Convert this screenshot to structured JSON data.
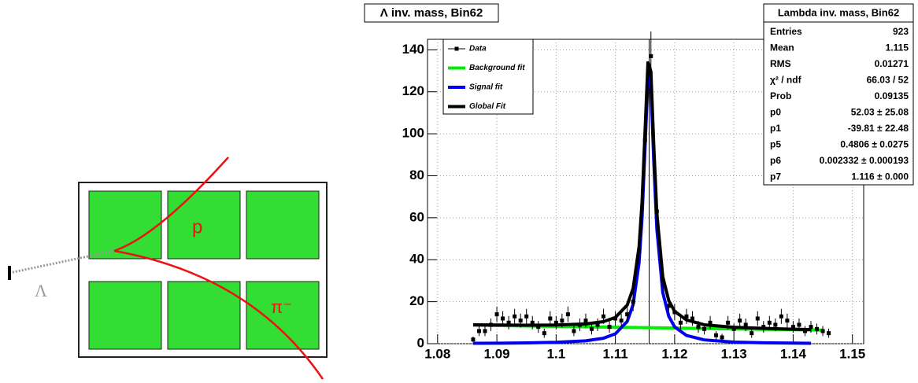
{
  "chart_data": {
    "type": "scatter",
    "title": "Λ inv. mass, Bin62",
    "xlim": [
      1.0783,
      1.1519
    ],
    "ylim": [
      0,
      145
    ],
    "xticks": [
      1.08,
      1.09,
      1.1,
      1.11,
      1.12,
      1.13,
      1.14,
      1.15
    ],
    "yticks": [
      0,
      20,
      40,
      60,
      80,
      100,
      120,
      140
    ],
    "grid": true,
    "legend_position": "top-left",
    "marker_line": {
      "x": 1.1157,
      "color": "#000000"
    },
    "series": [
      {
        "name": "Data",
        "color": "#000000",
        "mode": "points",
        "x": [
          1.086,
          1.087,
          1.088,
          1.089,
          1.09,
          1.091,
          1.092,
          1.093,
          1.094,
          1.095,
          1.096,
          1.097,
          1.098,
          1.099,
          1.1,
          1.101,
          1.102,
          1.103,
          1.104,
          1.105,
          1.106,
          1.107,
          1.108,
          1.109,
          1.11,
          1.111,
          1.112,
          1.113,
          1.114,
          1.115,
          1.116,
          1.117,
          1.118,
          1.119,
          1.12,
          1.121,
          1.122,
          1.123,
          1.124,
          1.125,
          1.126,
          1.127,
          1.128,
          1.129,
          1.13,
          1.131,
          1.132,
          1.133,
          1.134,
          1.135,
          1.136,
          1.137,
          1.138,
          1.139,
          1.14,
          1.141,
          1.142,
          1.143,
          1.144,
          1.145,
          1.146
        ],
        "values": [
          2,
          6,
          6,
          9,
          14,
          12,
          10,
          13,
          11,
          13,
          10,
          8,
          5,
          12,
          10,
          11,
          14,
          6,
          9,
          11,
          7,
          9,
          13,
          8,
          12,
          11,
          14,
          20,
          44,
          97,
          137,
          63,
          30,
          18,
          15,
          10,
          13,
          12,
          8,
          7,
          10,
          4,
          3,
          10,
          7,
          11,
          9,
          5,
          12,
          8,
          10,
          9,
          13,
          11,
          8,
          9,
          6,
          8,
          7,
          6,
          5
        ],
        "errors": [
          1.4,
          2.4,
          2.4,
          3,
          3.7,
          3.5,
          3.2,
          3.6,
          3.3,
          3.6,
          3.2,
          2.8,
          2.2,
          3.5,
          3.2,
          3.3,
          3.7,
          2.4,
          3,
          3.3,
          2.6,
          3,
          3.6,
          2.8,
          3.5,
          3.3,
          3.7,
          4.5,
          6.6,
          9.8,
          11.7,
          7.9,
          5.5,
          4.2,
          3.9,
          3.2,
          3.6,
          3.5,
          2.8,
          2.6,
          3.2,
          2,
          1.7,
          3.2,
          2.6,
          3.3,
          3,
          2.2,
          3.5,
          2.8,
          3.2,
          3,
          3.6,
          3.3,
          2.8,
          3,
          2.4,
          2.8,
          2.6,
          2.4,
          2.2
        ]
      },
      {
        "name": "Background fit",
        "color": "#00ee00",
        "mode": "line",
        "x": [
          1.086,
          1.09,
          1.095,
          1.1,
          1.105,
          1.11,
          1.115,
          1.12,
          1.125,
          1.13,
          1.135,
          1.14,
          1.145
        ],
        "values": [
          8.8,
          8.64,
          8.44,
          8.24,
          8.04,
          7.84,
          7.64,
          7.44,
          7.24,
          7.04,
          6.84,
          6.64,
          6.44
        ]
      },
      {
        "name": "Signal fit",
        "color": "#0000ee",
        "mode": "line",
        "x": [
          1.086,
          1.09,
          1.095,
          1.1,
          1.105,
          1.108,
          1.11,
          1.112,
          1.113,
          1.114,
          1.1145,
          1.115,
          1.1155,
          1.116,
          1.1165,
          1.117,
          1.118,
          1.119,
          1.12,
          1.122,
          1.125,
          1.13,
          1.135,
          1.14,
          1.143
        ],
        "values": [
          0.18,
          0.24,
          0.37,
          0.64,
          1.37,
          2.6,
          4.7,
          10.6,
          18.7,
          38.6,
          59.8,
          93.2,
          126.8,
          122,
          85.7,
          54.6,
          24.4,
          13.1,
          8,
          3.9,
          1.8,
          0.77,
          0.43,
          0.27,
          0.21
        ]
      },
      {
        "name": "Global Fit",
        "color": "#000000",
        "mode": "line",
        "x": [
          1.086,
          1.09,
          1.095,
          1.1,
          1.105,
          1.108,
          1.11,
          1.112,
          1.113,
          1.114,
          1.1145,
          1.115,
          1.1155,
          1.116,
          1.1165,
          1.117,
          1.118,
          1.119,
          1.12,
          1.122,
          1.125,
          1.13,
          1.135,
          1.14,
          1.143
        ],
        "values": [
          9,
          8.9,
          8.8,
          8.9,
          9.4,
          10.5,
          12.5,
          18.4,
          26.4,
          46.3,
          67.5,
          100.8,
          134.4,
          129.6,
          93.3,
          62.2,
          31.9,
          20.6,
          15.4,
          11.3,
          9,
          7.8,
          7.3,
          6.9,
          6.7
        ]
      }
    ],
    "stats": {
      "title": "Lambda inv. mass, Bin62",
      "rows": [
        [
          "Entries",
          "923"
        ],
        [
          "Mean",
          "1.115"
        ],
        [
          "RMS",
          "0.01271"
        ],
        [
          "χ² / ndf",
          "66.03 / 52"
        ],
        [
          "Prob",
          "0.09135"
        ],
        [
          "p0",
          "52.03 ± 25.08"
        ],
        [
          "p1",
          "-39.81 ± 22.48"
        ],
        [
          "p5",
          "0.4806 ± 0.0275"
        ],
        [
          "p6",
          "0.002332 ± 0.000193"
        ],
        [
          "p7",
          "1.116 ± 0.000"
        ]
      ]
    }
  },
  "diagram": {
    "labels": [
      "Λ",
      "p",
      "π⁻"
    ]
  }
}
